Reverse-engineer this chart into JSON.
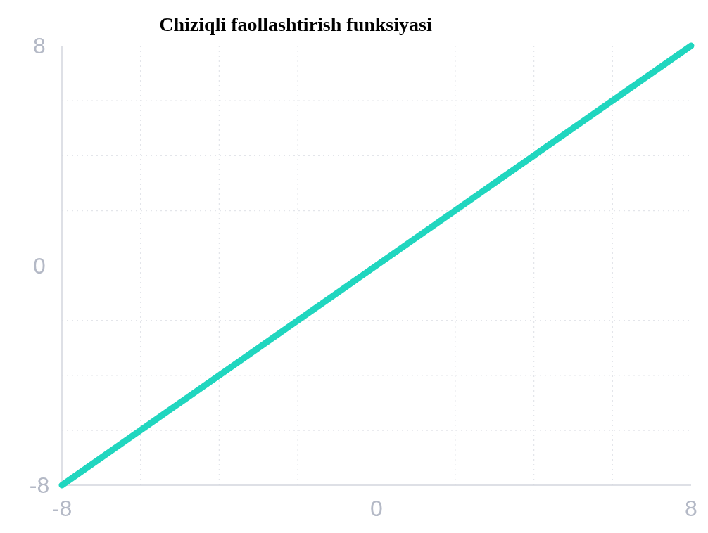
{
  "chart_data": {
    "type": "line",
    "title": "Chiziqli faollashtirish funksiyasi",
    "x": [
      -8,
      8
    ],
    "series": [
      {
        "color": "#20d6bf",
        "values": [
          -8,
          8
        ]
      }
    ],
    "xlim": [
      -8,
      8
    ],
    "ylim": [
      -8,
      8
    ],
    "xticks": [
      -8,
      {
        "value": -6,
        "label": null
      },
      {
        "value": -4,
        "label": null
      },
      {
        "value": -2,
        "label": null
      },
      0,
      {
        "value": 2,
        "label": null
      },
      {
        "value": 4,
        "label": null
      },
      {
        "value": 6,
        "label": null
      },
      8
    ],
    "yticks": [
      -8,
      {
        "value": -6,
        "label": null
      },
      {
        "value": -4,
        "label": null
      },
      {
        "value": -2,
        "label": null
      },
      0,
      {
        "value": 2,
        "label": null
      },
      {
        "value": 4,
        "label": null
      },
      {
        "value": 6,
        "label": null
      },
      8
    ],
    "grid": true,
    "marker": "none",
    "line_style": "solid"
  }
}
